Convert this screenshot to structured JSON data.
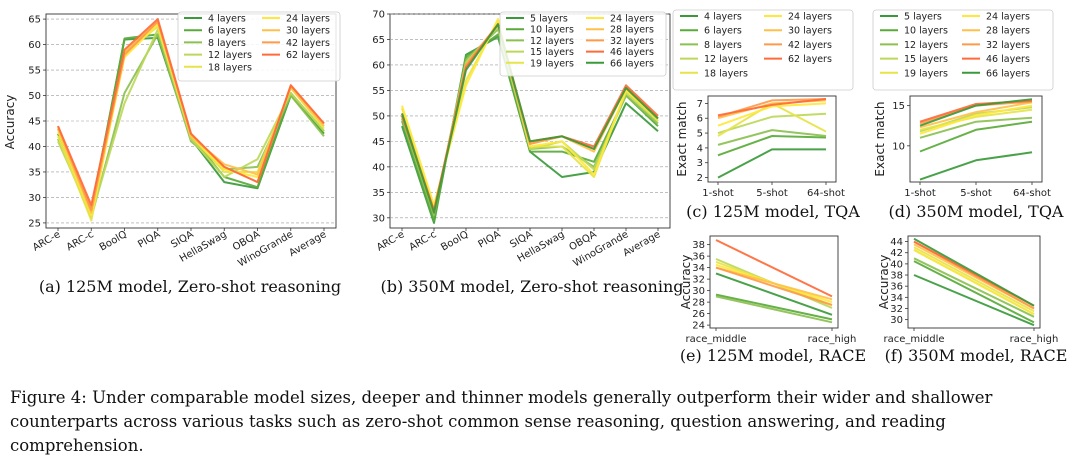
{
  "figure_caption": "Figure 4: Under comparable model sizes, deeper and thinner models generally outperform their wider and shallower counterparts across various tasks such as zero-shot common sense reasoning, question answering, and reading comprehension.",
  "colors": {
    "125m": [
      "#3a9a3a",
      "#5aaa3a",
      "#8cc050",
      "#bcd85a",
      "#e6e448",
      "#ffe83a",
      "#ffc04a",
      "#ff9a4a",
      "#ff6a3a"
    ],
    "350m": [
      "#3a9a3a",
      "#5aaa3a",
      "#8cc050",
      "#bcd85a",
      "#e6e448",
      "#ffe83a",
      "#ffc04a",
      "#ff9a4a",
      "#ff6a3a"
    ]
  },
  "chart_data": [
    {
      "id": "a",
      "type": "line",
      "caption": "(a) 125M model, Zero-shot reasoning",
      "ylabel": "Accuracy",
      "xlabel": "",
      "categories": [
        "ARC-e",
        "ARC-c",
        "BoolQ",
        "PIQA",
        "SIQA",
        "HellaSwag",
        "OBQA",
        "WinoGrande",
        "Average"
      ],
      "ylim": [
        24,
        66
      ],
      "yticks": [
        25,
        30,
        35,
        40,
        45,
        50,
        55,
        60,
        65
      ],
      "grid": "y-dashed",
      "legend": "top-right",
      "legend_cols": 2,
      "series": [
        {
          "name": "4 layers",
          "values": [
            42.5,
            27.5,
            61.0,
            61.3,
            41.5,
            33.0,
            31.8,
            50.0,
            42.5
          ]
        },
        {
          "name": "6 layers",
          "values": [
            43.5,
            27.0,
            61.2,
            62.0,
            42.0,
            34.0,
            32.0,
            50.5,
            43.0
          ]
        },
        {
          "name": "8 layers",
          "values": [
            41.5,
            26.0,
            50.5,
            62.0,
            41.0,
            35.5,
            36.0,
            50.0,
            42.0
          ]
        },
        {
          "name": "12 layers",
          "values": [
            41.0,
            26.5,
            48.5,
            63.0,
            41.5,
            34.0,
            37.5,
            50.5,
            43.0
          ]
        },
        {
          "name": "18 layers",
          "values": [
            42.0,
            25.5,
            58.5,
            63.5,
            42.0,
            35.0,
            35.0,
            51.5,
            43.5
          ]
        },
        {
          "name": "24 layers",
          "values": [
            43.0,
            26.5,
            57.5,
            64.0,
            42.0,
            35.5,
            34.0,
            51.5,
            44.0
          ]
        },
        {
          "name": "30 layers",
          "values": [
            43.5,
            27.0,
            58.5,
            64.5,
            42.0,
            36.5,
            34.5,
            51.5,
            44.0
          ]
        },
        {
          "name": "42 layers",
          "values": [
            44.0,
            27.5,
            58.0,
            64.5,
            42.5,
            36.0,
            33.0,
            52.0,
            44.5
          ]
        },
        {
          "name": "62 layers",
          "values": [
            44.0,
            28.5,
            59.0,
            65.0,
            42.5,
            36.0,
            33.0,
            52.0,
            44.5
          ]
        }
      ]
    },
    {
      "id": "b",
      "type": "line",
      "caption": "(b) 350M model, Zero-shot reasoning",
      "ylabel": "",
      "xlabel": "",
      "categories": [
        "ARC-e",
        "ARC-c",
        "BoolQ",
        "PIQA",
        "SIQA",
        "HellaSwag",
        "OBQA",
        "WinoGrande",
        "Average"
      ],
      "ylim": [
        28,
        70
      ],
      "yticks": [
        30,
        35,
        40,
        45,
        50,
        55,
        60,
        65,
        70
      ],
      "grid": "y-dashed",
      "legend": "top-right",
      "legend_cols": 2,
      "series": [
        {
          "name": "5 layers",
          "values": [
            48.0,
            29.0,
            62.0,
            65.5,
            43.0,
            38.0,
            39.0,
            52.5,
            47.0
          ]
        },
        {
          "name": "10 layers",
          "values": [
            49.0,
            29.5,
            61.5,
            66.0,
            43.0,
            43.0,
            41.0,
            54.0,
            48.0
          ]
        },
        {
          "name": "12 layers",
          "values": [
            49.5,
            30.5,
            61.0,
            67.0,
            43.5,
            44.0,
            40.0,
            54.0,
            48.5
          ]
        },
        {
          "name": "15 layers",
          "values": [
            50.0,
            31.0,
            60.5,
            67.5,
            43.5,
            45.0,
            39.5,
            54.5,
            49.0
          ]
        },
        {
          "name": "19 layers",
          "values": [
            51.5,
            32.0,
            57.0,
            68.5,
            44.0,
            44.0,
            38.0,
            55.0,
            49.0
          ]
        },
        {
          "name": "24 layers",
          "values": [
            52.0,
            32.5,
            56.0,
            69.0,
            44.0,
            45.0,
            38.5,
            55.0,
            49.5
          ]
        },
        {
          "name": "28 layers",
          "values": [
            50.5,
            31.5,
            59.5,
            68.0,
            44.5,
            46.0,
            43.0,
            55.5,
            49.5
          ]
        },
        {
          "name": "32 layers",
          "values": [
            50.5,
            31.0,
            60.0,
            68.0,
            44.5,
            46.0,
            43.5,
            55.5,
            49.5
          ]
        },
        {
          "name": "46 layers",
          "values": [
            50.0,
            31.5,
            59.5,
            68.0,
            45.0,
            46.0,
            44.0,
            56.0,
            50.0
          ]
        },
        {
          "name": "66 layers",
          "values": [
            50.5,
            31.0,
            59.0,
            68.0,
            45.0,
            46.0,
            43.5,
            55.5,
            49.5
          ]
        }
      ]
    },
    {
      "id": "c",
      "type": "line",
      "caption": "(c) 125M model, TQA",
      "ylabel": "Exact match",
      "xlabel": "",
      "categories": [
        "1-shot",
        "5-shot",
        "64-shot"
      ],
      "ylim": [
        1.7,
        7.5
      ],
      "yticks": [
        2,
        3,
        4,
        5,
        6,
        7
      ],
      "grid": "none",
      "legend": "above",
      "legend_cols": 2,
      "series": [
        {
          "name": "4 layers",
          "values": [
            2.0,
            3.9,
            3.9
          ]
        },
        {
          "name": "6 layers",
          "values": [
            3.5,
            4.8,
            4.7
          ]
        },
        {
          "name": "8 layers",
          "values": [
            4.2,
            5.2,
            4.8
          ]
        },
        {
          "name": "12 layers",
          "values": [
            5.0,
            6.1,
            6.3
          ]
        },
        {
          "name": "18 layers",
          "values": [
            4.8,
            7.0,
            5.1
          ]
        },
        {
          "name": "24 layers",
          "values": [
            5.5,
            6.8,
            7.0
          ]
        },
        {
          "name": "30 layers",
          "values": [
            6.0,
            7.0,
            7.2
          ]
        },
        {
          "name": "42 layers",
          "values": [
            6.1,
            7.2,
            7.3
          ]
        },
        {
          "name": "62 layers",
          "values": [
            6.2,
            6.9,
            7.3
          ]
        }
      ]
    },
    {
      "id": "d",
      "type": "line",
      "caption": "(d) 350M model, TQA",
      "ylabel": "Exact match",
      "xlabel": "",
      "categories": [
        "1-shot",
        "5-shot",
        "64-shot"
      ],
      "ylim": [
        5.5,
        16.2
      ],
      "yticks": [
        10,
        15
      ],
      "grid": "none",
      "legend": "above",
      "legend_cols": 2,
      "series": [
        {
          "name": "5 layers",
          "values": [
            5.8,
            8.2,
            9.2
          ]
        },
        {
          "name": "10 layers",
          "values": [
            9.3,
            12.0,
            13.0
          ]
        },
        {
          "name": "12 layers",
          "values": [
            11.0,
            13.0,
            13.5
          ]
        },
        {
          "name": "15 layers",
          "values": [
            11.8,
            14.0,
            14.8
          ]
        },
        {
          "name": "19 layers",
          "values": [
            12.0,
            13.6,
            14.5
          ]
        },
        {
          "name": "24 layers",
          "values": [
            11.5,
            13.8,
            15.0
          ]
        },
        {
          "name": "28 layers",
          "values": [
            12.3,
            14.2,
            15.4
          ]
        },
        {
          "name": "32 layers",
          "values": [
            12.8,
            15.0,
            15.5
          ]
        },
        {
          "name": "46 layers",
          "values": [
            13.0,
            15.2,
            15.6
          ]
        },
        {
          "name": "66 layers",
          "values": [
            12.5,
            15.0,
            15.8
          ]
        }
      ]
    },
    {
      "id": "e",
      "type": "line",
      "caption": "(e) 125M model, RACE",
      "ylabel": "Accuracy",
      "xlabel": "",
      "categories": [
        "race_middle",
        "race_high"
      ],
      "ylim": [
        23.5,
        39.5
      ],
      "yticks": [
        24,
        26,
        28,
        30,
        32,
        34,
        36,
        38
      ],
      "grid": "none",
      "legend": "none",
      "legend_cols": 0,
      "series": [
        {
          "name": "4 layers",
          "values": [
            33.0,
            25.8
          ]
        },
        {
          "name": "6 layers",
          "values": [
            29.3,
            25.0
          ]
        },
        {
          "name": "8 layers",
          "values": [
            29.0,
            24.5
          ]
        },
        {
          "name": "12 layers",
          "values": [
            35.5,
            27.0
          ]
        },
        {
          "name": "18 layers",
          "values": [
            35.0,
            27.5
          ]
        },
        {
          "name": "24 layers",
          "values": [
            34.5,
            28.0
          ]
        },
        {
          "name": "30 layers",
          "values": [
            34.0,
            28.5
          ]
        },
        {
          "name": "42 layers",
          "values": [
            34.0,
            27.5
          ]
        },
        {
          "name": "62 layers",
          "values": [
            38.8,
            29.0
          ]
        }
      ]
    },
    {
      "id": "f",
      "type": "line",
      "caption": "(f) 350M model, RACE",
      "ylabel": "Accuracy",
      "xlabel": "",
      "categories": [
        "race_middle",
        "race_high"
      ],
      "ylim": [
        28.5,
        45
      ],
      "yticks": [
        30,
        32,
        34,
        36,
        38,
        40,
        42,
        44
      ],
      "grid": "none",
      "legend": "none",
      "legend_cols": 0,
      "series": [
        {
          "name": "5 layers",
          "values": [
            38.0,
            29.0
          ]
        },
        {
          "name": "10 layers",
          "values": [
            40.5,
            29.5
          ]
        },
        {
          "name": "12 layers",
          "values": [
            41.0,
            30.5
          ]
        },
        {
          "name": "15 layers",
          "values": [
            42.5,
            31.0
          ]
        },
        {
          "name": "19 layers",
          "values": [
            43.0,
            31.5
          ]
        },
        {
          "name": "24 layers",
          "values": [
            42.5,
            31.0
          ]
        },
        {
          "name": "28 layers",
          "values": [
            43.5,
            32.0
          ]
        },
        {
          "name": "32 layers",
          "values": [
            44.0,
            32.0
          ]
        },
        {
          "name": "46 layers",
          "values": [
            44.0,
            32.5
          ]
        },
        {
          "name": "66 layers",
          "values": [
            44.5,
            32.5
          ]
        }
      ]
    }
  ]
}
